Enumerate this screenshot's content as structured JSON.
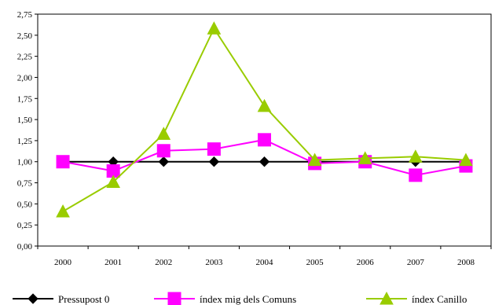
{
  "chart_data": {
    "type": "line",
    "categories": [
      "2000",
      "2001",
      "2002",
      "2003",
      "2004",
      "2005",
      "2006",
      "2007",
      "2008"
    ],
    "ylim": [
      0,
      2.75
    ],
    "y_ticks": [
      "0,00",
      "0,25",
      "0,50",
      "0,75",
      "1,00",
      "1,25",
      "1,50",
      "1,75",
      "2,00",
      "2,25",
      "2,50",
      "2,75"
    ],
    "grid": false,
    "legend_position": "bottom",
    "series": [
      {
        "name": "Pressupost 0",
        "marker": "diamond",
        "color": "#000000",
        "values": [
          1.0,
          1.0,
          1.0,
          1.0,
          1.0,
          1.0,
          1.0,
          1.0,
          1.0
        ]
      },
      {
        "name": "índex mig dels Comuns",
        "marker": "square",
        "color": "#FF00FF",
        "values": [
          1.0,
          0.89,
          1.13,
          1.15,
          1.26,
          0.98,
          1.0,
          0.84,
          0.95
        ]
      },
      {
        "name": "índex Canillo",
        "marker": "triangle",
        "color": "#99CC00",
        "values": [
          0.41,
          0.76,
          1.33,
          2.58,
          1.66,
          1.02,
          1.04,
          1.06,
          1.02
        ]
      }
    ]
  }
}
